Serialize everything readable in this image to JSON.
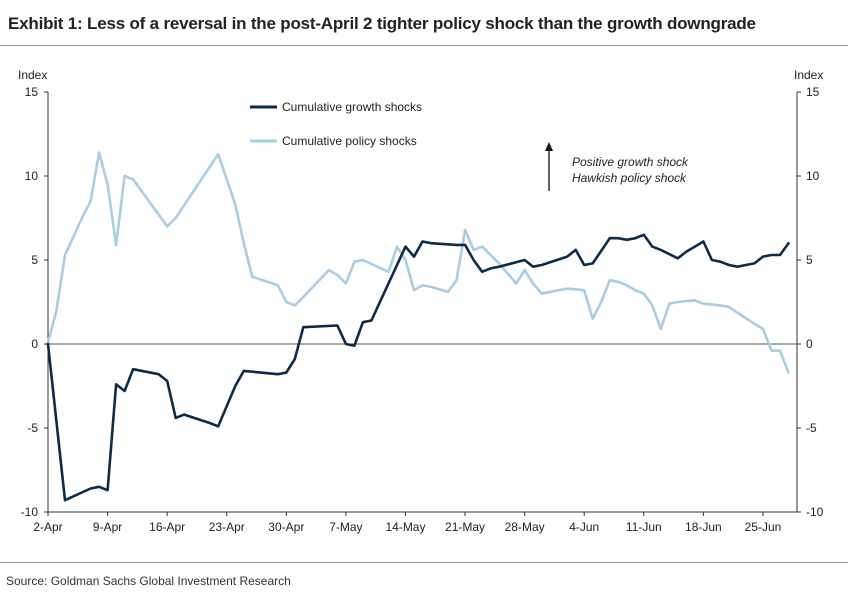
{
  "header": {
    "title": "Exhibit 1: Less of a reversal in the post-April 2 tighter policy shock than the growth downgrade"
  },
  "footer": {
    "source": "Source: Goldman Sachs Global Investment Research"
  },
  "colors": {
    "growth": "#0d2b48",
    "policy": "#a9cde3",
    "axis": "#333333"
  },
  "chart_data": {
    "type": "line",
    "title": "Exhibit 1: Less of a reversal in the post-April 2 tighter policy shock than the growth downgrade",
    "ylabel_left": "Index",
    "ylabel_right": "Index",
    "ylim": [
      -10,
      15
    ],
    "yticks": [
      -10,
      -5,
      0,
      5,
      10,
      15
    ],
    "xlim": [
      0,
      88
    ],
    "xtick_labels": [
      "2-Apr",
      "9-Apr",
      "16-Apr",
      "23-Apr",
      "30-Apr",
      "7-May",
      "14-May",
      "21-May",
      "28-May",
      "4-Jun",
      "11-Jun",
      "18-Jun",
      "25-Jun"
    ],
    "xtick_days": [
      0,
      7,
      14,
      21,
      28,
      35,
      42,
      49,
      56,
      63,
      70,
      77,
      84
    ],
    "annotation": {
      "line1": "Positive growth shock",
      "line2": "Hawkish policy shock"
    },
    "series": [
      {
        "name": "Cumulative growth shocks",
        "x": [
          0,
          2,
          5,
          6,
          7,
          8,
          9,
          10,
          13,
          14,
          15,
          16,
          19,
          20,
          22,
          23,
          27,
          28,
          29,
          30,
          34,
          35,
          36,
          37,
          38,
          42,
          43,
          44,
          45,
          48,
          49,
          50,
          51,
          52,
          53,
          56,
          57,
          58,
          61,
          62,
          63,
          64,
          66,
          67,
          68,
          69,
          70,
          71,
          72,
          74,
          75,
          76,
          77,
          78,
          79,
          80,
          81,
          82,
          83,
          84,
          85,
          86,
          87
        ],
        "values": [
          0.0,
          -9.3,
          -8.6,
          -8.5,
          -8.7,
          -2.4,
          -2.8,
          -1.5,
          -1.8,
          -2.2,
          -4.4,
          -4.2,
          -4.7,
          -4.9,
          -2.5,
          -1.6,
          -1.8,
          -1.7,
          -0.9,
          1.0,
          1.1,
          0.0,
          -0.1,
          1.3,
          1.4,
          5.8,
          5.2,
          6.1,
          6.0,
          5.9,
          5.9,
          5.0,
          4.3,
          4.5,
          4.6,
          5.0,
          4.6,
          4.7,
          5.2,
          5.6,
          4.7,
          4.8,
          6.3,
          6.3,
          6.2,
          6.3,
          6.5,
          5.8,
          5.6,
          5.1,
          5.5,
          5.8,
          6.1,
          5.0,
          4.9,
          4.7,
          4.6,
          4.7,
          4.8,
          5.2,
          5.3,
          5.3,
          6.0
        ]
      },
      {
        "name": "Cumulative policy shocks",
        "x": [
          0,
          1,
          2,
          4,
          5,
          6,
          7,
          8,
          9,
          10,
          14,
          15,
          20,
          22,
          23,
          24,
          27,
          28,
          29,
          30,
          33,
          34,
          35,
          36,
          37,
          40,
          41,
          42,
          43,
          44,
          45,
          47,
          48,
          49,
          50,
          51,
          53,
          55,
          56,
          57,
          58,
          60,
          61,
          63,
          64,
          65,
          66,
          67,
          68,
          69,
          70,
          71,
          72,
          73,
          74,
          76,
          77,
          79,
          80,
          83,
          84,
          85,
          86,
          87
        ],
        "values": [
          0.1,
          2.0,
          5.3,
          7.5,
          8.5,
          11.4,
          9.5,
          5.9,
          10.0,
          9.8,
          7.0,
          7.5,
          11.3,
          8.3,
          6.0,
          4.0,
          3.5,
          2.5,
          2.3,
          2.8,
          4.4,
          4.1,
          3.6,
          4.9,
          5.0,
          4.3,
          5.8,
          5.0,
          3.2,
          3.5,
          3.4,
          3.1,
          3.8,
          6.8,
          5.6,
          5.8,
          4.8,
          3.6,
          4.4,
          3.6,
          3.0,
          3.2,
          3.3,
          3.2,
          1.5,
          2.5,
          3.8,
          3.7,
          3.5,
          3.2,
          3.0,
          2.3,
          0.9,
          2.4,
          2.5,
          2.6,
          2.4,
          2.3,
          2.2,
          1.2,
          0.9,
          -0.4,
          -0.4,
          -1.7
        ]
      }
    ]
  }
}
